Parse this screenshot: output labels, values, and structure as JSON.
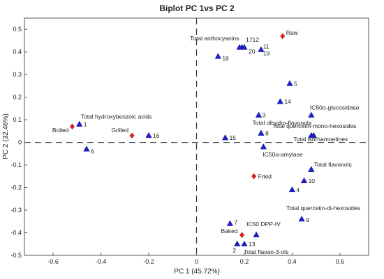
{
  "chart_data": {
    "type": "scatter",
    "title": "Biplot PC 1vs PC 2",
    "xlabel": "PC 1 (45.72%)",
    "ylabel": "PC 2 (32.46%)",
    "xlim": [
      -0.72,
      0.72
    ],
    "ylim": [
      -0.5,
      0.55
    ],
    "xticks": [
      -0.6,
      -0.4,
      -0.2,
      0,
      0.2,
      0.4,
      0.6
    ],
    "yticks": [
      -0.5,
      -0.4,
      -0.3,
      -0.2,
      -0.1,
      0,
      0.1,
      0.2,
      0.3,
      0.4,
      0.5
    ],
    "grid": false,
    "zero_lines": "dashed",
    "series": [
      {
        "marker": "triangle",
        "color": "#1f1fcc",
        "points": [
          {
            "x": -0.49,
            "y": 0.08,
            "label": "1"
          },
          {
            "x": -0.49,
            "y": 0.08,
            "label": "Total hydroxybenzoic acids"
          },
          {
            "x": 0.17,
            "y": -0.45,
            "label": "2"
          },
          {
            "x": 0.26,
            "y": 0.12,
            "label": "3"
          },
          {
            "x": 0.4,
            "y": -0.21,
            "label": "4"
          },
          {
            "x": 0.39,
            "y": 0.26,
            "label": "5"
          },
          {
            "x": -0.46,
            "y": -0.03,
            "label": "6"
          },
          {
            "x": 0.14,
            "y": -0.36,
            "label": "7"
          },
          {
            "x": 0.27,
            "y": 0.04,
            "label": "8"
          },
          {
            "x": 0.44,
            "y": -0.34,
            "label": "9"
          },
          {
            "x": 0.45,
            "y": -0.17,
            "label": "10"
          },
          {
            "x": 0.27,
            "y": 0.41,
            "label": "11"
          },
          {
            "x": 0.19,
            "y": 0.42,
            "label": "12"
          },
          {
            "x": 0.2,
            "y": -0.45,
            "label": "13"
          },
          {
            "x": 0.35,
            "y": 0.18,
            "label": "14"
          },
          {
            "x": 0.12,
            "y": 0.02,
            "label": "15"
          },
          {
            "x": -0.2,
            "y": 0.03,
            "label": "16"
          },
          {
            "x": 0.18,
            "y": 0.42,
            "label": "17"
          },
          {
            "x": 0.09,
            "y": 0.38,
            "label": "18"
          },
          {
            "x": 0.27,
            "y": 0.41,
            "label": "19"
          },
          {
            "x": 0.2,
            "y": 0.42,
            "label": "20"
          },
          {
            "x": 0.19,
            "y": 0.42,
            "label": "Total anthocyanins"
          },
          {
            "x": 0.48,
            "y": 0.12,
            "label": "IC50α-glucosidase"
          },
          {
            "x": 0.26,
            "y": 0.12,
            "label": "Total dihydro-flavonols"
          },
          {
            "x": 0.48,
            "y": 0.03,
            "label": "Total quercetin-mono-hexosides"
          },
          {
            "x": 0.49,
            "y": 0.03,
            "label": "Total isorhamnetines"
          },
          {
            "x": 0.28,
            "y": -0.02,
            "label": "IC50α-amylase"
          },
          {
            "x": 0.48,
            "y": -0.12,
            "label": "Total flavonols"
          },
          {
            "x": 0.44,
            "y": -0.34,
            "label": "Total quercetin-di-hexosides"
          },
          {
            "x": 0.25,
            "y": -0.41,
            "label": "IC50 DPP-IV"
          },
          {
            "x": 0.2,
            "y": -0.45,
            "label": "Total flavan-3-ols"
          }
        ]
      },
      {
        "marker": "diamond",
        "color": "#e02020",
        "points": [
          {
            "x": 0.36,
            "y": 0.47,
            "label": "Raw"
          },
          {
            "x": -0.52,
            "y": 0.07,
            "label": "Boiled"
          },
          {
            "x": -0.27,
            "y": 0.03,
            "label": "Grilled"
          },
          {
            "x": 0.24,
            "y": -0.15,
            "label": "Fried"
          },
          {
            "x": 0.19,
            "y": -0.41,
            "label": "Baked"
          }
        ]
      }
    ]
  }
}
